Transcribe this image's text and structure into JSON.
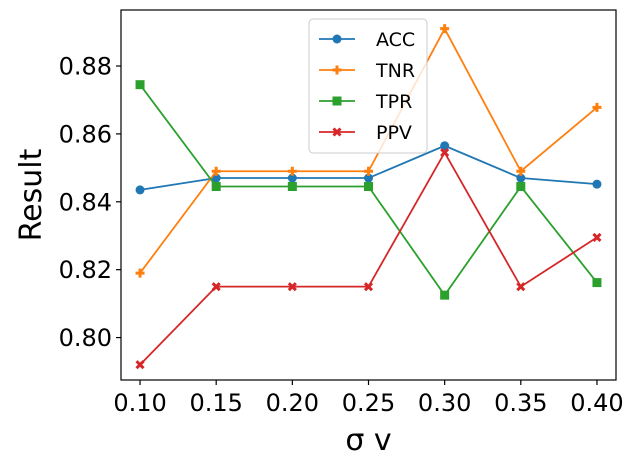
{
  "chart_data": {
    "type": "line",
    "title": "",
    "xlabel": "σ v",
    "ylabel": "Result",
    "x": [
      0.1,
      0.15,
      0.2,
      0.25,
      0.3,
      0.35,
      0.4
    ],
    "x_tick_labels": [
      "0.10",
      "0.15",
      "0.20",
      "0.25",
      "0.30",
      "0.35",
      "0.40"
    ],
    "y_ticks": [
      0.8,
      0.82,
      0.84,
      0.86,
      0.88
    ],
    "y_tick_labels": [
      "0.80",
      "0.82",
      "0.84",
      "0.86",
      "0.88"
    ],
    "xlim": [
      0.0875,
      0.4125
    ],
    "ylim": [
      0.7875,
      0.8965
    ],
    "grid": false,
    "legend_position": "top-center",
    "series": [
      {
        "name": "ACC",
        "color": "#1f77b4",
        "marker": "circle",
        "values": [
          0.8435,
          0.847,
          0.847,
          0.847,
          0.8565,
          0.847,
          0.8452
        ]
      },
      {
        "name": "TNR",
        "color": "#ff7f0e",
        "marker": "plus",
        "values": [
          0.819,
          0.849,
          0.849,
          0.849,
          0.891,
          0.849,
          0.8678
        ]
      },
      {
        "name": "TPR",
        "color": "#2ca02c",
        "marker": "square",
        "values": [
          0.8745,
          0.8445,
          0.8445,
          0.8445,
          0.8125,
          0.8445,
          0.8162
        ]
      },
      {
        "name": "PPV",
        "color": "#d62728",
        "marker": "x",
        "values": [
          0.792,
          0.815,
          0.815,
          0.815,
          0.8545,
          0.815,
          0.8295
        ]
      }
    ]
  }
}
